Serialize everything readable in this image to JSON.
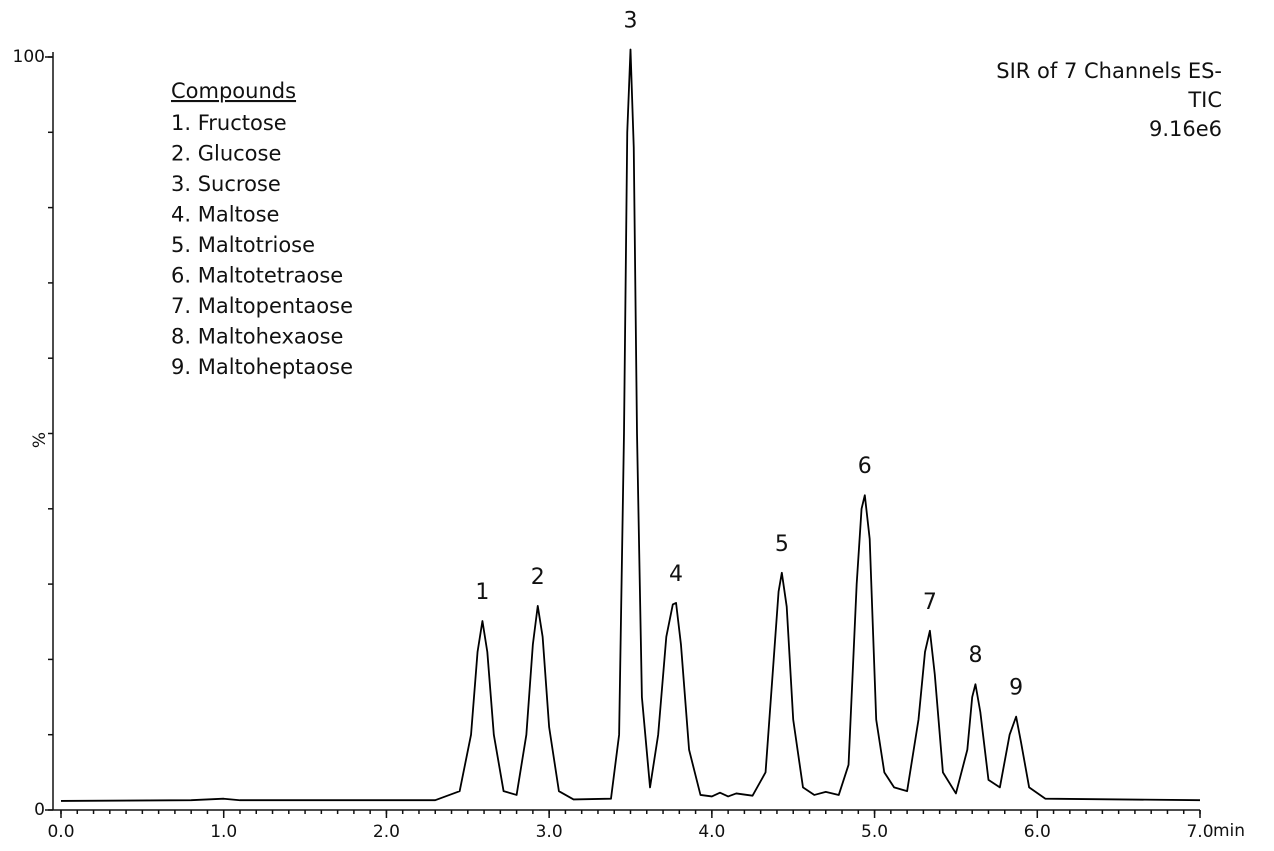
{
  "chart_data": {
    "type": "line",
    "title_lines": [
      "SIR of 7 Channels ES-",
      "TIC",
      "9.16e6"
    ],
    "xlabel": "min",
    "ylabel": "%",
    "legend_title": "Compounds",
    "legend_items": [
      "1. Fructose",
      "2. Glucose",
      "3. Sucrose",
      "4. Maltose",
      "5. Maltotriose",
      "6. Maltotetraose",
      "7. Maltopentaose",
      "8. Maltohexaose",
      "9. Maltoheptaose"
    ],
    "xlim": [
      0,
      7
    ],
    "ylim": [
      0,
      100
    ],
    "xticks": [
      {
        "value": 0,
        "label": "0.0"
      },
      {
        "value": 1,
        "label": "1.0"
      },
      {
        "value": 2,
        "label": "2.0"
      },
      {
        "value": 3,
        "label": "3.0"
      },
      {
        "value": 4,
        "label": "4.0"
      },
      {
        "value": 5,
        "label": "5.0"
      },
      {
        "value": 6,
        "label": "6.0"
      },
      {
        "value": 7,
        "label": "7.0"
      }
    ],
    "yticks": [
      0,
      100
    ],
    "series": [
      {
        "color": "#000000",
        "x": [
          0.0,
          0.8,
          1.0,
          1.1,
          2.3,
          2.45,
          2.52,
          2.56,
          2.59,
          2.62,
          2.66,
          2.72,
          2.8,
          2.86,
          2.9,
          2.93,
          2.96,
          3.0,
          3.06,
          3.15,
          3.38,
          3.43,
          3.46,
          3.48,
          3.5,
          3.52,
          3.54,
          3.57,
          3.62,
          3.67,
          3.72,
          3.76,
          3.78,
          3.81,
          3.86,
          3.93,
          4.0,
          4.05,
          4.1,
          4.15,
          4.25,
          4.33,
          4.38,
          4.41,
          4.43,
          4.46,
          4.5,
          4.56,
          4.63,
          4.7,
          4.78,
          4.84,
          4.89,
          4.92,
          4.94,
          4.97,
          5.01,
          5.06,
          5.12,
          5.2,
          5.27,
          5.31,
          5.34,
          5.37,
          5.42,
          5.5,
          5.57,
          5.6,
          5.62,
          5.65,
          5.7,
          5.77,
          5.83,
          5.87,
          5.9,
          5.95,
          6.05,
          7.0
        ],
        "values": [
          1.2,
          1.3,
          1.5,
          1.3,
          1.3,
          2.5,
          10,
          21,
          25.1,
          21,
          10,
          2.5,
          2.0,
          10,
          22,
          27.1,
          23,
          11,
          2.5,
          1.4,
          1.5,
          10,
          50,
          90,
          101,
          88,
          50,
          15,
          3,
          10,
          23,
          27.3,
          27.5,
          22,
          8,
          2,
          1.8,
          2.3,
          1.8,
          2.2,
          1.9,
          5,
          20,
          29,
          31.5,
          27,
          12,
          3,
          2.0,
          2.4,
          2.0,
          6,
          30,
          40,
          41.8,
          36,
          12,
          5,
          3,
          2.5,
          12,
          21,
          23.8,
          18,
          5,
          2.2,
          8,
          15,
          16.7,
          13,
          4,
          3,
          10,
          12.4,
          9,
          3,
          1.5,
          1.3
        ]
      }
    ],
    "annotations": [
      {
        "text": "1",
        "x": 2.59,
        "y": 25.1
      },
      {
        "text": "2",
        "x": 2.93,
        "y": 27.1
      },
      {
        "text": "3",
        "x": 3.5,
        "y": 101
      },
      {
        "text": "4",
        "x": 3.78,
        "y": 27.5
      },
      {
        "text": "5",
        "x": 4.43,
        "y": 31.5
      },
      {
        "text": "6",
        "x": 4.94,
        "y": 41.8
      },
      {
        "text": "7",
        "x": 5.34,
        "y": 23.8
      },
      {
        "text": "8",
        "x": 5.62,
        "y": 16.7
      },
      {
        "text": "9",
        "x": 5.87,
        "y": 12.4
      }
    ]
  }
}
